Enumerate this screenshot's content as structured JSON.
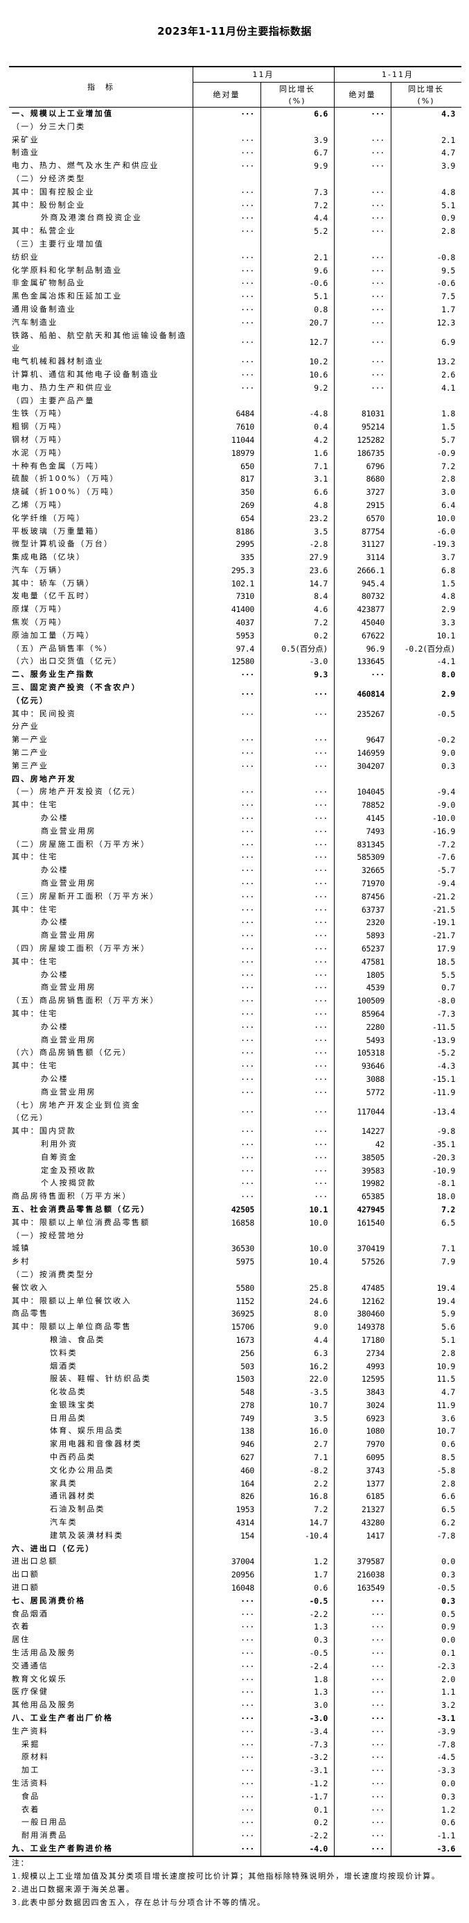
{
  "title": "2023年1-11月份主要指标数据",
  "header": {
    "indicator": "指　标",
    "period_month": "11月",
    "period_cum": "1-11月",
    "abs": "绝对量",
    "yoy": "同比增长\n(%)"
  },
  "rows": [
    {
      "label": "一、规模以上工业增加值",
      "m_abs": "···",
      "m_yoy": "6.6",
      "c_abs": "···",
      "c_yoy": "4.3",
      "bold": true,
      "indent": 0
    },
    {
      "label": "（一）分三大门类",
      "m_abs": "",
      "m_yoy": "",
      "c_abs": "",
      "c_yoy": "",
      "indent": 0
    },
    {
      "label": "采矿业",
      "m_abs": "···",
      "m_yoy": "3.9",
      "c_abs": "···",
      "c_yoy": "2.1",
      "indent": 0
    },
    {
      "label": "制造业",
      "m_abs": "···",
      "m_yoy": "6.7",
      "c_abs": "···",
      "c_yoy": "4.7",
      "indent": 0
    },
    {
      "label": "电力、热力、燃气及水生产和供应业",
      "m_abs": "···",
      "m_yoy": "9.9",
      "c_abs": "···",
      "c_yoy": "3.9",
      "indent": 0
    },
    {
      "label": "（二）分经济类型",
      "m_abs": "",
      "m_yoy": "",
      "c_abs": "",
      "c_yoy": "",
      "indent": 0
    },
    {
      "label": "其中：国有控股企业",
      "m_abs": "···",
      "m_yoy": "7.3",
      "c_abs": "···",
      "c_yoy": "4.8",
      "indent": 0
    },
    {
      "label": "其中：股份制企业",
      "m_abs": "···",
      "m_yoy": "7.2",
      "c_abs": "···",
      "c_yoy": "5.1",
      "indent": 0
    },
    {
      "label": "外商及港澳台商投资企业",
      "m_abs": "···",
      "m_yoy": "4.4",
      "c_abs": "···",
      "c_yoy": "0.9",
      "indent": 1
    },
    {
      "label": "其中：私营企业",
      "m_abs": "···",
      "m_yoy": "5.2",
      "c_abs": "···",
      "c_yoy": "2.8",
      "indent": 0
    },
    {
      "label": "（三）主要行业增加值",
      "m_abs": "",
      "m_yoy": "",
      "c_abs": "",
      "c_yoy": "",
      "indent": 0
    },
    {
      "label": "纺织业",
      "m_abs": "···",
      "m_yoy": "2.1",
      "c_abs": "···",
      "c_yoy": "-0.8",
      "indent": 0
    },
    {
      "label": "化学原料和化学制品制造业",
      "m_abs": "···",
      "m_yoy": "9.6",
      "c_abs": "···",
      "c_yoy": "9.5",
      "indent": 0
    },
    {
      "label": "非金属矿物制品业",
      "m_abs": "···",
      "m_yoy": "-0.6",
      "c_abs": "···",
      "c_yoy": "-0.6",
      "indent": 0
    },
    {
      "label": "黑色金属冶炼和压延加工业",
      "m_abs": "···",
      "m_yoy": "5.1",
      "c_abs": "···",
      "c_yoy": "7.5",
      "indent": 0
    },
    {
      "label": "通用设备制造业",
      "m_abs": "···",
      "m_yoy": "0.8",
      "c_abs": "···",
      "c_yoy": "1.7",
      "indent": 0
    },
    {
      "label": "汽车制造业",
      "m_abs": "···",
      "m_yoy": "20.7",
      "c_abs": "···",
      "c_yoy": "12.3",
      "indent": 0
    },
    {
      "label": "铁路、船舶、航空航天和其他运输设备制造业",
      "m_abs": "···",
      "m_yoy": "12.7",
      "c_abs": "···",
      "c_yoy": "6.9",
      "indent": 0,
      "two_line": true
    },
    {
      "label": "电气机械和器材制造业",
      "m_abs": "···",
      "m_yoy": "10.2",
      "c_abs": "···",
      "c_yoy": "13.2",
      "indent": 0
    },
    {
      "label": "计算机、通信和其他电子设备制造业",
      "m_abs": "···",
      "m_yoy": "10.6",
      "c_abs": "···",
      "c_yoy": "2.6",
      "indent": 0
    },
    {
      "label": "电力、热力生产和供应业",
      "m_abs": "···",
      "m_yoy": "9.2",
      "c_abs": "···",
      "c_yoy": "4.1",
      "indent": 0
    },
    {
      "label": "（四）主要产品产量",
      "m_abs": "",
      "m_yoy": "",
      "c_abs": "",
      "c_yoy": "",
      "indent": 0
    },
    {
      "label": "生铁（万吨）",
      "m_abs": "6484",
      "m_yoy": "-4.8",
      "c_abs": "81031",
      "c_yoy": "1.8",
      "indent": 0
    },
    {
      "label": "粗钢（万吨）",
      "m_abs": "7610",
      "m_yoy": "0.4",
      "c_abs": "95214",
      "c_yoy": "1.5",
      "indent": 0
    },
    {
      "label": "钢材（万吨）",
      "m_abs": "11044",
      "m_yoy": "4.2",
      "c_abs": "125282",
      "c_yoy": "5.7",
      "indent": 0
    },
    {
      "label": "水泥（万吨）",
      "m_abs": "18979",
      "m_yoy": "1.6",
      "c_abs": "186735",
      "c_yoy": "-0.9",
      "indent": 0
    },
    {
      "label": "十种有色金属（万吨）",
      "m_abs": "650",
      "m_yoy": "7.1",
      "c_abs": "6796",
      "c_yoy": "7.2",
      "indent": 0
    },
    {
      "label": "硫酸（折100%）（万吨）",
      "m_abs": "817",
      "m_yoy": "3.1",
      "c_abs": "8680",
      "c_yoy": "2.8",
      "indent": 0
    },
    {
      "label": "烧碱（折100%）（万吨）",
      "m_abs": "350",
      "m_yoy": "6.6",
      "c_abs": "3727",
      "c_yoy": "3.0",
      "indent": 0
    },
    {
      "label": "乙烯（万吨）",
      "m_abs": "269",
      "m_yoy": "4.8",
      "c_abs": "2915",
      "c_yoy": "6.4",
      "indent": 0
    },
    {
      "label": "化学纤维（万吨）",
      "m_abs": "654",
      "m_yoy": "23.2",
      "c_abs": "6570",
      "c_yoy": "10.0",
      "indent": 0
    },
    {
      "label": "平板玻璃（万重量箱）",
      "m_abs": "8186",
      "m_yoy": "3.5",
      "c_abs": "87754",
      "c_yoy": "-6.0",
      "indent": 0
    },
    {
      "label": "微型计算机设备（万台）",
      "m_abs": "2995",
      "m_yoy": "-2.8",
      "c_abs": "31127",
      "c_yoy": "-19.3",
      "indent": 0
    },
    {
      "label": "集成电路（亿块）",
      "m_abs": "335",
      "m_yoy": "27.9",
      "c_abs": "3114",
      "c_yoy": "3.7",
      "indent": 0
    },
    {
      "label": "汽车（万辆）",
      "m_abs": "295.3",
      "m_yoy": "23.6",
      "c_abs": "2666.1",
      "c_yoy": "6.8",
      "indent": 0
    },
    {
      "label": "其中：轿车（万辆）",
      "m_abs": "102.1",
      "m_yoy": "14.7",
      "c_abs": "945.4",
      "c_yoy": "1.5",
      "indent": 0
    },
    {
      "label": "发电量（亿千瓦时）",
      "m_abs": "7310",
      "m_yoy": "8.4",
      "c_abs": "80732",
      "c_yoy": "4.8",
      "indent": 0
    },
    {
      "label": "原煤（万吨）",
      "m_abs": "41400",
      "m_yoy": "4.6",
      "c_abs": "423877",
      "c_yoy": "2.9",
      "indent": 0
    },
    {
      "label": "焦炭（万吨）",
      "m_abs": "4037",
      "m_yoy": "7.2",
      "c_abs": "45040",
      "c_yoy": "3.3",
      "indent": 0
    },
    {
      "label": "原油加工量（万吨）",
      "m_abs": "5953",
      "m_yoy": "0.2",
      "c_abs": "67622",
      "c_yoy": "10.1",
      "indent": 0
    },
    {
      "label": "（五）产品销售率（%）",
      "m_abs": "97.4",
      "m_yoy": "0.5(百分点)",
      "c_abs": "96.9",
      "c_yoy": "-0.2(百分点)",
      "indent": 0
    },
    {
      "label": "（六）出口交货值（亿元）",
      "m_abs": "12580",
      "m_yoy": "-3.0",
      "c_abs": "133645",
      "c_yoy": "-4.1",
      "indent": 0
    },
    {
      "label": "二、服务业生产指数",
      "m_abs": "···",
      "m_yoy": "9.3",
      "c_abs": "···",
      "c_yoy": "8.0",
      "bold": true,
      "indent": 0
    },
    {
      "label": "三、固定资产投资（不含农户）\n（亿元）",
      "m_abs": "···",
      "m_yoy": "···",
      "c_abs": "460814",
      "c_yoy": "2.9",
      "bold": true,
      "indent": 0,
      "two_line": true
    },
    {
      "label": "其中：民间投资",
      "m_abs": "···",
      "m_yoy": "···",
      "c_abs": "235267",
      "c_yoy": "-0.5",
      "indent": 0
    },
    {
      "label": "分产业",
      "m_abs": "",
      "m_yoy": "",
      "c_abs": "",
      "c_yoy": "",
      "indent": 0
    },
    {
      "label": "第一产业",
      "m_abs": "···",
      "m_yoy": "···",
      "c_abs": "9647",
      "c_yoy": "-0.2",
      "indent": 0
    },
    {
      "label": "第二产业",
      "m_abs": "···",
      "m_yoy": "···",
      "c_abs": "146959",
      "c_yoy": "9.0",
      "indent": 0
    },
    {
      "label": "第三产业",
      "m_abs": "···",
      "m_yoy": "···",
      "c_abs": "304207",
      "c_yoy": "0.3",
      "indent": 0
    },
    {
      "label": "四、房地产开发",
      "m_abs": "",
      "m_yoy": "",
      "c_abs": "",
      "c_yoy": "",
      "bold": true,
      "indent": 0
    },
    {
      "label": "（一）房地产开发投资（亿元）",
      "m_abs": "···",
      "m_yoy": "···",
      "c_abs": "104045",
      "c_yoy": "-9.4",
      "indent": 0
    },
    {
      "label": "其中：住宅",
      "m_abs": "···",
      "m_yoy": "···",
      "c_abs": "78852",
      "c_yoy": "-9.0",
      "indent": 0
    },
    {
      "label": "办公楼",
      "m_abs": "···",
      "m_yoy": "···",
      "c_abs": "4145",
      "c_yoy": "-10.0",
      "indent": 1
    },
    {
      "label": "商业营业用房",
      "m_abs": "···",
      "m_yoy": "···",
      "c_abs": "7493",
      "c_yoy": "-16.9",
      "indent": 1
    },
    {
      "label": "（二）房屋施工面积（万平方米）",
      "m_abs": "···",
      "m_yoy": "···",
      "c_abs": "831345",
      "c_yoy": "-7.2",
      "indent": 0
    },
    {
      "label": "其中：住宅",
      "m_abs": "···",
      "m_yoy": "···",
      "c_abs": "585309",
      "c_yoy": "-7.6",
      "indent": 0
    },
    {
      "label": "办公楼",
      "m_abs": "···",
      "m_yoy": "···",
      "c_abs": "32665",
      "c_yoy": "-5.7",
      "indent": 1
    },
    {
      "label": "商业营业用房",
      "m_abs": "···",
      "m_yoy": "···",
      "c_abs": "71970",
      "c_yoy": "-9.4",
      "indent": 1
    },
    {
      "label": "（三）房屋新开工面积（万平方米）",
      "m_abs": "···",
      "m_yoy": "···",
      "c_abs": "87456",
      "c_yoy": "-21.2",
      "indent": 0
    },
    {
      "label": "其中：住宅",
      "m_abs": "···",
      "m_yoy": "···",
      "c_abs": "63737",
      "c_yoy": "-21.5",
      "indent": 0
    },
    {
      "label": "办公楼",
      "m_abs": "···",
      "m_yoy": "···",
      "c_abs": "2320",
      "c_yoy": "-19.1",
      "indent": 1
    },
    {
      "label": "商业营业用房",
      "m_abs": "···",
      "m_yoy": "···",
      "c_abs": "5893",
      "c_yoy": "-21.7",
      "indent": 1
    },
    {
      "label": "（四）房屋竣工面积（万平方米）",
      "m_abs": "···",
      "m_yoy": "···",
      "c_abs": "65237",
      "c_yoy": "17.9",
      "indent": 0
    },
    {
      "label": "其中：住宅",
      "m_abs": "···",
      "m_yoy": "···",
      "c_abs": "47581",
      "c_yoy": "18.5",
      "indent": 0
    },
    {
      "label": "办公楼",
      "m_abs": "···",
      "m_yoy": "···",
      "c_abs": "1805",
      "c_yoy": "5.5",
      "indent": 1
    },
    {
      "label": "商业营业用房",
      "m_abs": "···",
      "m_yoy": "···",
      "c_abs": "4539",
      "c_yoy": "0.7",
      "indent": 1
    },
    {
      "label": "（五）商品房销售面积（万平方米）",
      "m_abs": "···",
      "m_yoy": "···",
      "c_abs": "100509",
      "c_yoy": "-8.0",
      "indent": 0
    },
    {
      "label": "其中：住宅",
      "m_abs": "···",
      "m_yoy": "···",
      "c_abs": "85964",
      "c_yoy": "-7.3",
      "indent": 0
    },
    {
      "label": "办公楼",
      "m_abs": "···",
      "m_yoy": "···",
      "c_abs": "2280",
      "c_yoy": "-11.5",
      "indent": 1
    },
    {
      "label": "商业营业用房",
      "m_abs": "···",
      "m_yoy": "···",
      "c_abs": "5493",
      "c_yoy": "-13.9",
      "indent": 1
    },
    {
      "label": "（六）商品房销售额（亿元）",
      "m_abs": "···",
      "m_yoy": "···",
      "c_abs": "105318",
      "c_yoy": "-5.2",
      "indent": 0
    },
    {
      "label": "其中：住宅",
      "m_abs": "···",
      "m_yoy": "···",
      "c_abs": "93646",
      "c_yoy": "-4.3",
      "indent": 0
    },
    {
      "label": "办公楼",
      "m_abs": "···",
      "m_yoy": "···",
      "c_abs": "3088",
      "c_yoy": "-15.1",
      "indent": 1
    },
    {
      "label": "商业营业用房",
      "m_abs": "···",
      "m_yoy": "···",
      "c_abs": "5772",
      "c_yoy": "-11.9",
      "indent": 1
    },
    {
      "label": "（七）房地产开发企业到位资金\n（亿元）",
      "m_abs": "···",
      "m_yoy": "···",
      "c_abs": "117044",
      "c_yoy": "-13.4",
      "indent": 0,
      "two_line": true
    },
    {
      "label": "其中：国内贷款",
      "m_abs": "···",
      "m_yoy": "···",
      "c_abs": "14227",
      "c_yoy": "-9.8",
      "indent": 0
    },
    {
      "label": "利用外资",
      "m_abs": "···",
      "m_yoy": "···",
      "c_abs": "42",
      "c_yoy": "-35.1",
      "indent": 1
    },
    {
      "label": "自筹资金",
      "m_abs": "···",
      "m_yoy": "···",
      "c_abs": "38505",
      "c_yoy": "-20.3",
      "indent": 1
    },
    {
      "label": "定金及预收款",
      "m_abs": "···",
      "m_yoy": "···",
      "c_abs": "39583",
      "c_yoy": "-10.9",
      "indent": 1
    },
    {
      "label": "个人按揭贷款",
      "m_abs": "···",
      "m_yoy": "···",
      "c_abs": "19982",
      "c_yoy": "-8.1",
      "indent": 1
    },
    {
      "label": "商品房待售面积（万平方米）",
      "m_abs": "···",
      "m_yoy": "···",
      "c_abs": "65385",
      "c_yoy": "18.0",
      "indent": 0
    },
    {
      "label": "五、社会消费品零售总额（亿元）",
      "m_abs": "42505",
      "m_yoy": "10.1",
      "c_abs": "427945",
      "c_yoy": "7.2",
      "bold": true,
      "indent": 0
    },
    {
      "label": "其中：限额以上单位消费品零售额",
      "m_abs": "16858",
      "m_yoy": "10.0",
      "c_abs": "161540",
      "c_yoy": "6.5",
      "indent": 0
    },
    {
      "label": "（一）按经营地分",
      "m_abs": "",
      "m_yoy": "",
      "c_abs": "",
      "c_yoy": "",
      "indent": 0
    },
    {
      "label": "城镇",
      "m_abs": "36530",
      "m_yoy": "10.0",
      "c_abs": "370419",
      "c_yoy": "7.1",
      "indent": 0
    },
    {
      "label": "乡村",
      "m_abs": "5975",
      "m_yoy": "10.4",
      "c_abs": "57526",
      "c_yoy": "7.9",
      "indent": 0
    },
    {
      "label": "（二）按消费类型分",
      "m_abs": "",
      "m_yoy": "",
      "c_abs": "",
      "c_yoy": "",
      "indent": 0
    },
    {
      "label": "餐饮收入",
      "m_abs": "5580",
      "m_yoy": "25.8",
      "c_abs": "47485",
      "c_yoy": "19.4",
      "indent": 0
    },
    {
      "label": "其中：限额以上单位餐饮收入",
      "m_abs": "1152",
      "m_yoy": "24.6",
      "c_abs": "12162",
      "c_yoy": "19.4",
      "indent": 0
    },
    {
      "label": "商品零售",
      "m_abs": "36925",
      "m_yoy": "8.0",
      "c_abs": "380460",
      "c_yoy": "5.9",
      "indent": 0
    },
    {
      "label": "其中：限额以上单位商品零售",
      "m_abs": "15706",
      "m_yoy": "9.0",
      "c_abs": "149378",
      "c_yoy": "5.6",
      "indent": 0
    },
    {
      "label": "粮油、食品类",
      "m_abs": "1673",
      "m_yoy": "4.4",
      "c_abs": "17180",
      "c_yoy": "5.1",
      "indent": 2
    },
    {
      "label": "饮料类",
      "m_abs": "256",
      "m_yoy": "6.3",
      "c_abs": "2734",
      "c_yoy": "2.8",
      "indent": 2
    },
    {
      "label": "烟酒类",
      "m_abs": "503",
      "m_yoy": "16.2",
      "c_abs": "4993",
      "c_yoy": "10.9",
      "indent": 2
    },
    {
      "label": "服装、鞋帽、针纺织品类",
      "m_abs": "1503",
      "m_yoy": "22.0",
      "c_abs": "12595",
      "c_yoy": "11.5",
      "indent": 2
    },
    {
      "label": "化妆品类",
      "m_abs": "548",
      "m_yoy": "-3.5",
      "c_abs": "3843",
      "c_yoy": "4.7",
      "indent": 2
    },
    {
      "label": "金银珠宝类",
      "m_abs": "278",
      "m_yoy": "10.7",
      "c_abs": "3024",
      "c_yoy": "11.9",
      "indent": 2
    },
    {
      "label": "日用品类",
      "m_abs": "749",
      "m_yoy": "3.5",
      "c_abs": "6923",
      "c_yoy": "3.6",
      "indent": 2
    },
    {
      "label": "体育、娱乐用品类",
      "m_abs": "138",
      "m_yoy": "16.0",
      "c_abs": "1080",
      "c_yoy": "10.7",
      "indent": 2
    },
    {
      "label": "家用电器和音像器材类",
      "m_abs": "946",
      "m_yoy": "2.7",
      "c_abs": "7970",
      "c_yoy": "0.6",
      "indent": 2
    },
    {
      "label": "中西药品类",
      "m_abs": "627",
      "m_yoy": "7.1",
      "c_abs": "6095",
      "c_yoy": "8.5",
      "indent": 2
    },
    {
      "label": "文化办公用品类",
      "m_abs": "460",
      "m_yoy": "-8.2",
      "c_abs": "3743",
      "c_yoy": "-5.8",
      "indent": 2
    },
    {
      "label": "家具类",
      "m_abs": "164",
      "m_yoy": "2.2",
      "c_abs": "1377",
      "c_yoy": "2.8",
      "indent": 2
    },
    {
      "label": "通讯器材类",
      "m_abs": "826",
      "m_yoy": "16.8",
      "c_abs": "6185",
      "c_yoy": "6.6",
      "indent": 2
    },
    {
      "label": "石油及制品类",
      "m_abs": "1953",
      "m_yoy": "7.2",
      "c_abs": "21327",
      "c_yoy": "6.5",
      "indent": 2
    },
    {
      "label": "汽车类",
      "m_abs": "4314",
      "m_yoy": "14.7",
      "c_abs": "43280",
      "c_yoy": "6.2",
      "indent": 2
    },
    {
      "label": "建筑及装潢材料类",
      "m_abs": "154",
      "m_yoy": "-10.4",
      "c_abs": "1417",
      "c_yoy": "-7.8",
      "indent": 2
    },
    {
      "label": "六、进出口（亿元）",
      "m_abs": "",
      "m_yoy": "",
      "c_abs": "",
      "c_yoy": "",
      "bold": true,
      "indent": 0
    },
    {
      "label": "进出口总额",
      "m_abs": "37004",
      "m_yoy": "1.2",
      "c_abs": "379587",
      "c_yoy": "0.0",
      "indent": 0
    },
    {
      "label": "出口额",
      "m_abs": "20956",
      "m_yoy": "1.7",
      "c_abs": "216038",
      "c_yoy": "0.3",
      "indent": 0
    },
    {
      "label": "进口额",
      "m_abs": "16048",
      "m_yoy": "0.6",
      "c_abs": "163549",
      "c_yoy": "-0.5",
      "indent": 0
    },
    {
      "label": "七、居民消费价格",
      "m_abs": "···",
      "m_yoy": "-0.5",
      "c_abs": "···",
      "c_yoy": "0.3",
      "bold": true,
      "indent": 0
    },
    {
      "label": "食品烟酒",
      "m_abs": "···",
      "m_yoy": "-2.2",
      "c_abs": "···",
      "c_yoy": "0.5",
      "indent": 0
    },
    {
      "label": "衣着",
      "m_abs": "···",
      "m_yoy": "1.3",
      "c_abs": "···",
      "c_yoy": "0.9",
      "indent": 0
    },
    {
      "label": "居住",
      "m_abs": "···",
      "m_yoy": "0.3",
      "c_abs": "···",
      "c_yoy": "0.0",
      "indent": 0
    },
    {
      "label": "生活用品及服务",
      "m_abs": "···",
      "m_yoy": "-0.5",
      "c_abs": "···",
      "c_yoy": "0.1",
      "indent": 0
    },
    {
      "label": "交通通信",
      "m_abs": "···",
      "m_yoy": "-2.4",
      "c_abs": "···",
      "c_yoy": "-2.3",
      "indent": 0
    },
    {
      "label": "教育文化娱乐",
      "m_abs": "···",
      "m_yoy": "1.8",
      "c_abs": "···",
      "c_yoy": "2.0",
      "indent": 0
    },
    {
      "label": "医疗保健",
      "m_abs": "···",
      "m_yoy": "1.3",
      "c_abs": "···",
      "c_yoy": "1.1",
      "indent": 0
    },
    {
      "label": "其他用品及服务",
      "m_abs": "···",
      "m_yoy": "3.0",
      "c_abs": "···",
      "c_yoy": "3.2",
      "indent": 0
    },
    {
      "label": "八、工业生产者出厂价格",
      "m_abs": "···",
      "m_yoy": "-3.0",
      "c_abs": "···",
      "c_yoy": "-3.1",
      "bold": true,
      "indent": 0
    },
    {
      "label": "生产资料",
      "m_abs": "···",
      "m_yoy": "-3.4",
      "c_abs": "···",
      "c_yoy": "-3.9",
      "indent": 0
    },
    {
      "label": "采掘",
      "m_abs": "···",
      "m_yoy": "-7.3",
      "c_abs": "···",
      "c_yoy": "-7.8",
      "indent": 3
    },
    {
      "label": "原材料",
      "m_abs": "···",
      "m_yoy": "-3.2",
      "c_abs": "···",
      "c_yoy": "-4.5",
      "indent": 3
    },
    {
      "label": "加工",
      "m_abs": "···",
      "m_yoy": "-3.1",
      "c_abs": "···",
      "c_yoy": "-3.3",
      "indent": 3
    },
    {
      "label": "生活资料",
      "m_abs": "···",
      "m_yoy": "-1.2",
      "c_abs": "···",
      "c_yoy": "0.0",
      "indent": 0
    },
    {
      "label": "食品",
      "m_abs": "···",
      "m_yoy": "-1.7",
      "c_abs": "···",
      "c_yoy": "0.3",
      "indent": 3
    },
    {
      "label": "衣着",
      "m_abs": "···",
      "m_yoy": "0.1",
      "c_abs": "···",
      "c_yoy": "1.2",
      "indent": 3
    },
    {
      "label": "一般日用品",
      "m_abs": "···",
      "m_yoy": "0.2",
      "c_abs": "···",
      "c_yoy": "0.6",
      "indent": 3
    },
    {
      "label": "耐用消费品",
      "m_abs": "···",
      "m_yoy": "-2.2",
      "c_abs": "···",
      "c_yoy": "-1.1",
      "indent": 3
    },
    {
      "label": "九、工业生产者购进价格",
      "m_abs": "···",
      "m_yoy": "-4.0",
      "c_abs": "···",
      "c_yoy": "-3.6",
      "bold": true,
      "indent": 0
    }
  ],
  "notes": {
    "heading": "注：",
    "items": [
      "1.规模以上工业增加值及其分类项目增长速度按可比价计算；其他指标除特殊说明外，增长速度均按现价计算。",
      "2.进出口数据来源于海关总署。",
      "3.此表中部分数据因四舍五入，存在总计与分项合计不等的情况。"
    ]
  }
}
